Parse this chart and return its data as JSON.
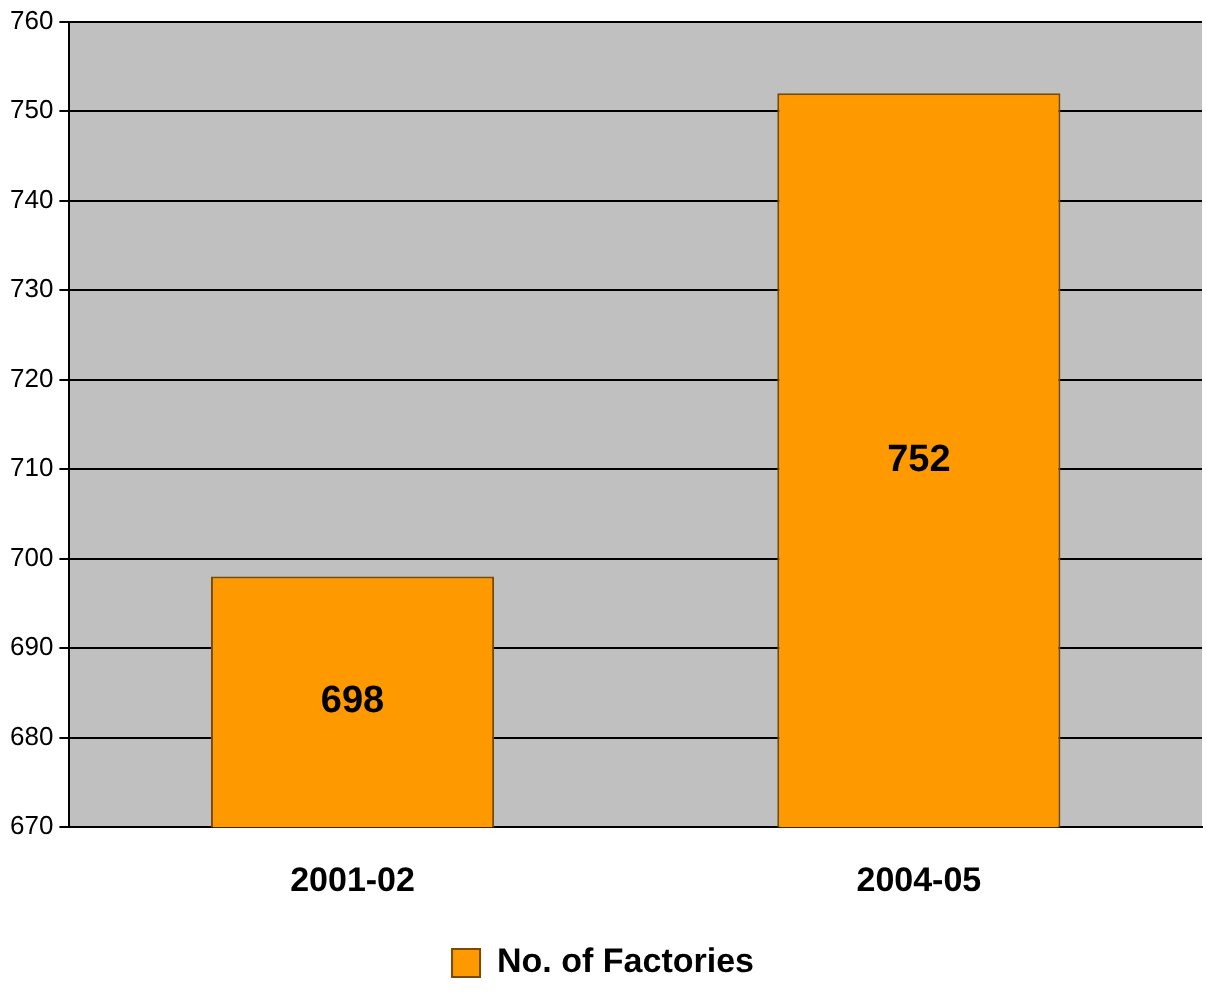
{
  "chart_data": {
    "type": "bar",
    "categories": [
      "2001-02",
      "2004-05"
    ],
    "series": [
      {
        "name": "No. of Factories",
        "color": "#ff9900",
        "values": [
          698,
          752
        ]
      }
    ],
    "ylim": [
      670,
      760
    ],
    "yticks": [
      670,
      680,
      690,
      700,
      710,
      720,
      730,
      740,
      750,
      760
    ],
    "grid": "y",
    "legend": "bottom",
    "data_labels": true
  }
}
